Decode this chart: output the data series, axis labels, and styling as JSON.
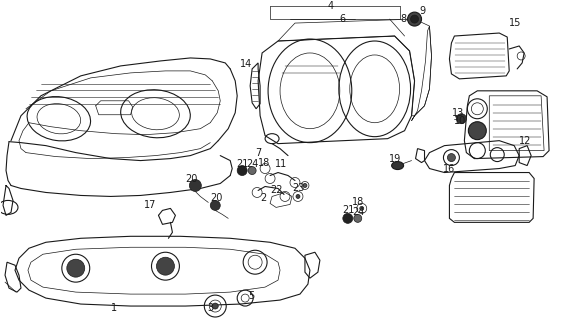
{
  "bg_color": "#ffffff",
  "line_color": "#1a1a1a",
  "fig_width": 5.81,
  "fig_height": 3.2,
  "dpi": 100
}
